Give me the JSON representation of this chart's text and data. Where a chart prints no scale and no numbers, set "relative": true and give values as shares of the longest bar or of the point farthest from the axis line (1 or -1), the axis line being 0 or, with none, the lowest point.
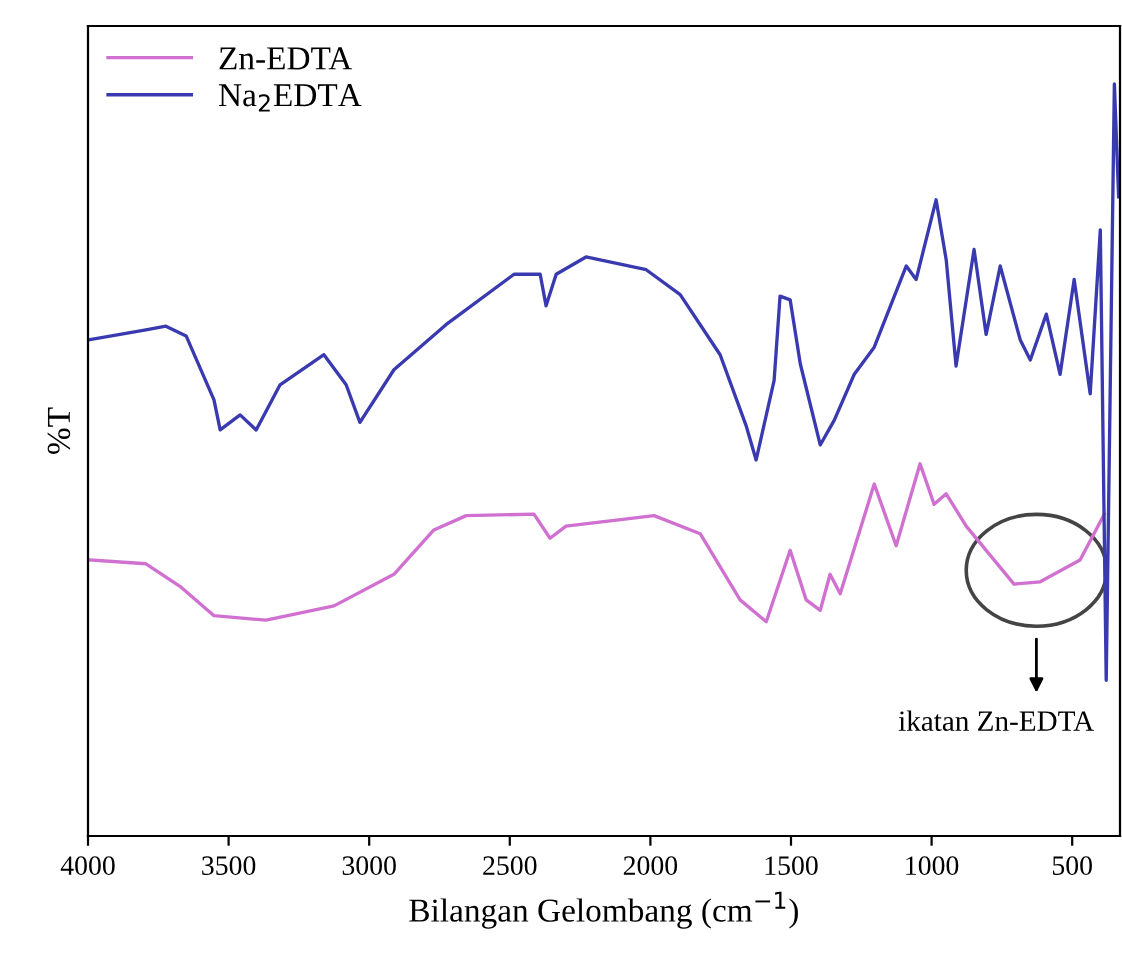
{
  "chart_data": {
    "type": "line",
    "relative": true,
    "xlabel": "Bilangan Gelombang (cm$^{−1}$)",
    "ylabel": "%T",
    "x": [
      3993,
      3794,
      3723,
      3651,
      3552,
      3530,
      3459,
      3402,
      3317,
      3161,
      3082,
      3033,
      2912,
      2727,
      2485,
      2392,
      2371,
      2335,
      2229,
      2015,
      1894,
      1752,
      1659,
      1624,
      1560,
      1539,
      1503,
      1467,
      1396,
      1346,
      1275,
      1204,
      1090,
      1055,
      984,
      948,
      913,
      849,
      806,
      756,
      685,
      649,
      592,
      543,
      493,
      436,
      400,
      379,
      350,
      335
    ],
    "series": [
      {
        "name": "Zn-EDTA",
        "color": "#d070d0",
        "x": [
          3993,
          3794,
          3673,
          3552,
          3367,
          3125,
          2912,
          2770,
          2655,
          2414,
          2357,
          2300,
          1987,
          1823,
          1681,
          1588,
          1503,
          1446,
          1396,
          1361,
          1325,
          1204,
          1126,
          1041,
          991,
          948,
          877,
          707,
          614,
          472,
          386
        ],
        "values": [
          0.367,
          0.362,
          0.332,
          0.293,
          0.287,
          0.306,
          0.348,
          0.407,
          0.426,
          0.428,
          0.396,
          0.412,
          0.426,
          0.402,
          0.314,
          0.285,
          0.38,
          0.314,
          0.3,
          0.348,
          0.322,
          0.468,
          0.386,
          0.495,
          0.441,
          0.455,
          0.412,
          0.335,
          0.338,
          0.367,
          0.428
        ]
      },
      {
        "name": "Na$_{2}$EDTA",
        "color": "#3a3ab0",
        "values": [
          0.66,
          0.673,
          0.678,
          0.665,
          0.58,
          0.54,
          0.56,
          0.54,
          0.6,
          0.64,
          0.6,
          0.55,
          0.62,
          0.68,
          0.747,
          0.747,
          0.705,
          0.747,
          0.77,
          0.753,
          0.72,
          0.64,
          0.545,
          0.5,
          0.606,
          0.718,
          0.713,
          0.628,
          0.52,
          0.553,
          0.614,
          0.65,
          0.758,
          0.74,
          0.846,
          0.766,
          0.625,
          0.78,
          0.667,
          0.758,
          0.66,
          0.633,
          0.694,
          0.614,
          0.74,
          0.588,
          0.806,
          0.207,
          1,
          0.85
        ]
      }
    ],
    "xlim": [
      4000,
      330
    ],
    "xticks": [
      4000,
      3500,
      3000,
      2500,
      2000,
      1500,
      1000,
      500
    ],
    "legend": "top left",
    "grid": false,
    "annotations": [
      "ikatan Zn-EDTA"
    ]
  }
}
